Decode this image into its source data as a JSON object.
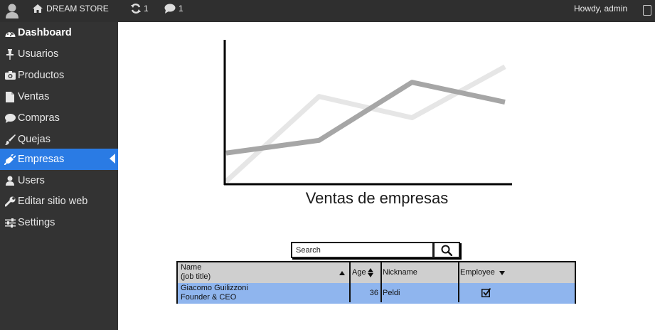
{
  "topbar": {
    "store_name": "DREAM STORE",
    "updates_count": "1",
    "comments_count": "1",
    "greeting": "Howdy, admin"
  },
  "sidebar": {
    "items": [
      {
        "label": "Dashboard",
        "icon": "dashboard-icon"
      },
      {
        "label": "Usuarios",
        "icon": "pin-icon"
      },
      {
        "label": "Productos",
        "icon": "camera-icon"
      },
      {
        "label": "Ventas",
        "icon": "document-icon"
      },
      {
        "label": "Compras",
        "icon": "comment-icon"
      },
      {
        "label": "Quejas",
        "icon": "brush-icon"
      },
      {
        "label": "Empresas",
        "icon": "plug-icon"
      },
      {
        "label": "Users",
        "icon": "user-icon"
      },
      {
        "label": "Editar sitio web",
        "icon": "wrench-icon"
      },
      {
        "label": "Settings",
        "icon": "sliders-icon"
      }
    ],
    "active_item": "Empresas"
  },
  "chart_data": {
    "type": "line",
    "title": "Ventas de empresas",
    "x": [
      0,
      1,
      2,
      3
    ],
    "series": [
      {
        "color": "#a6a6a6",
        "values": [
          20,
          29,
          70,
          56
        ]
      },
      {
        "color": "#e6e6e6",
        "values": [
          0,
          60,
          45,
          81
        ]
      }
    ],
    "ylim": [
      0,
      100
    ],
    "grid": false
  },
  "search": {
    "placeholder": "Search"
  },
  "table": {
    "headers": {
      "name": "Name",
      "job_title": "(job title)",
      "age": "Age",
      "nickname": "Nickname",
      "employee": "Employee"
    },
    "rows": [
      {
        "name": "Giacomo Guilizzoni",
        "job_title": "Founder & CEO",
        "age": "36",
        "nickname": "Peldi",
        "employee": true
      }
    ]
  },
  "colors": {
    "topbar_bg": "#2f2f2f",
    "sidebar_bg": "#333333",
    "active_item_bg": "#2a7be4",
    "table_header_bg": "#cfcfcf",
    "table_row_bg": "#8fb5ee"
  }
}
